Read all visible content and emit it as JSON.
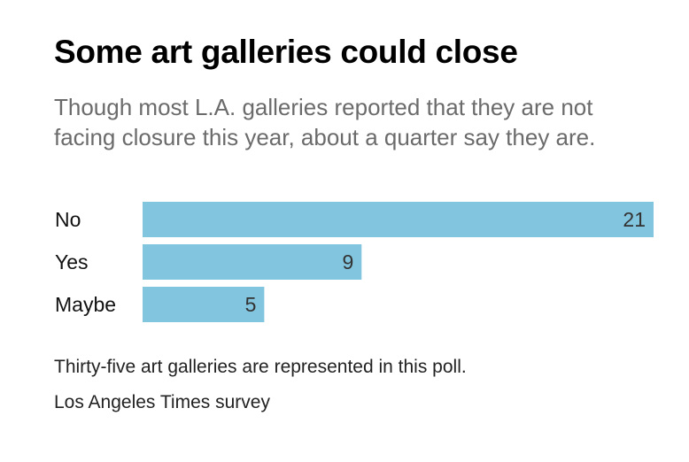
{
  "header": {
    "title": "Some art galleries could close",
    "subtitle": "Though most L.A. galleries reported that they are not facing closure this year, about a quarter say they are."
  },
  "chart_data": {
    "type": "bar",
    "orientation": "horizontal",
    "categories": [
      "No",
      "Yes",
      "Maybe"
    ],
    "values": [
      21,
      9,
      5
    ],
    "data_labels": [
      "21",
      "9",
      "5"
    ],
    "xlim": [
      0,
      21
    ],
    "grid": false,
    "bar_color": "#82c5df"
  },
  "footer": {
    "note": "Thirty-five art galleries are represented in this poll.",
    "source": "Los Angeles Times survey"
  }
}
